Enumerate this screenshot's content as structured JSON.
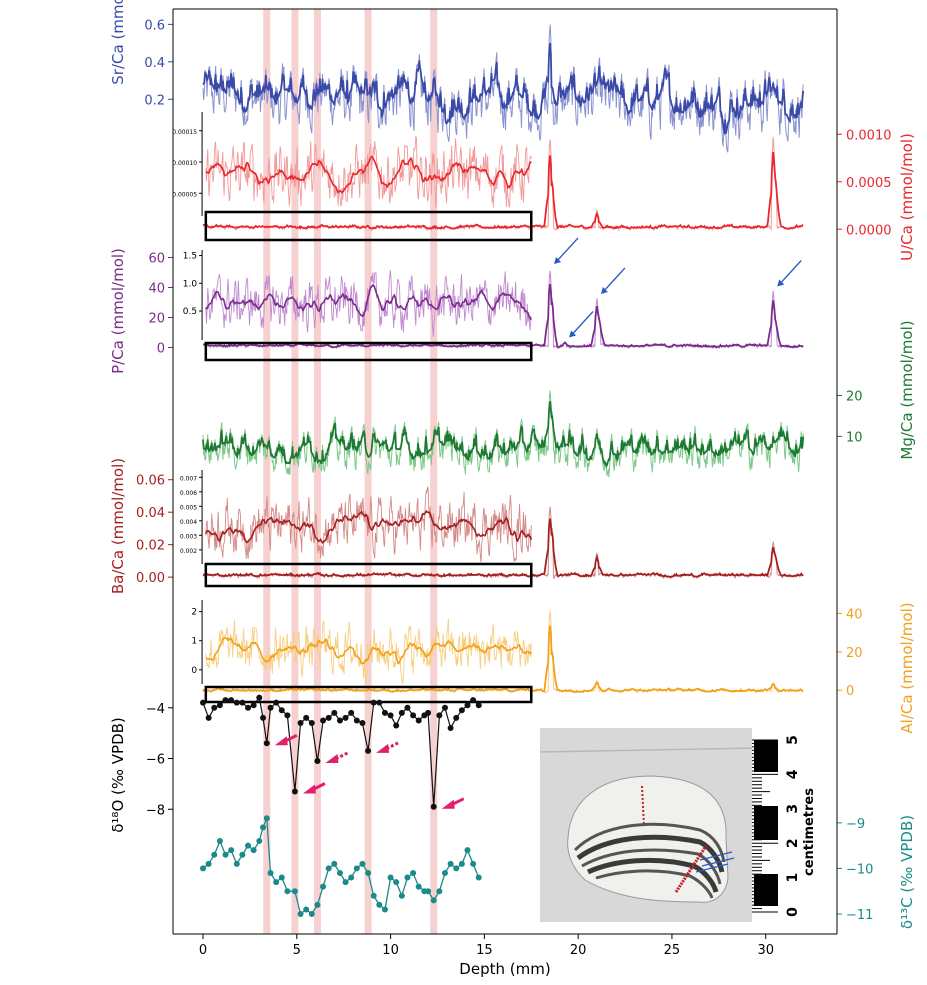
{
  "chart_data": {
    "type": "line",
    "x_axis": {
      "label": "Depth (mm)",
      "ticks": [
        0,
        5,
        10,
        15,
        20,
        25,
        30
      ],
      "range": [
        -1.6,
        33.8
      ]
    },
    "highlight_bands_mm": [
      3.4,
      4.9,
      6.1,
      8.8,
      12.3
    ],
    "colors": {
      "sr": "#3a4aa8",
      "sr_light": "#8a92d0",
      "u": "#e8282c",
      "u_light": "#f29a9a",
      "p": "#7b2c8a",
      "p_light": "#c08ad0",
      "mg": "#1e7a32",
      "mg_light": "#7cc98a",
      "ba": "#a52020",
      "ba_light": "#d48a88",
      "al": "#f2a01a",
      "al_light": "#f8cf80",
      "d18o": "#111111",
      "d13c": "#1a8a8a",
      "band": "#f2b0b0",
      "arrow_red": "#e0206a",
      "arrow_blue": "#2a5ac8"
    },
    "series": [
      {
        "key": "sr",
        "name": "Sr/Ca (mmol/mol)",
        "side": "left",
        "ticks": [
          "0.2",
          "0.4",
          "0.6"
        ],
        "tick_values": [
          0.2,
          0.4,
          0.6
        ],
        "range": [
          0.1,
          0.65
        ],
        "peaks": [
          [
            18.5,
            0.62
          ],
          [
            30.4,
            0.3
          ]
        ]
      },
      {
        "key": "u",
        "name": "U/Ca (mmol/mol)",
        "side": "right",
        "ticks": [
          "0.0000",
          "0.0005",
          "0.0010"
        ],
        "tick_values": [
          0,
          0.0005,
          0.001
        ],
        "range": [
          -5e-05,
          0.00115
        ],
        "peaks": [
          [
            18.5,
            0.00098
          ],
          [
            18.6,
            0.00055
          ],
          [
            21.0,
            0.0002
          ],
          [
            30.4,
            0.00098
          ],
          [
            30.5,
            0.0006
          ]
        ],
        "inset": {
          "ticks": [
            "0.00005",
            "0.00010",
            "0.00015"
          ],
          "tick_values": [
            5e-05,
            0.0001,
            0.00015
          ],
          "range": [
            2e-05,
            0.00018
          ]
        }
      },
      {
        "key": "p",
        "name": "P/Ca (mmol/mol)",
        "side": "left",
        "ticks": [
          "0",
          "20",
          "40",
          "60"
        ],
        "tick_values": [
          0,
          20,
          40,
          60
        ],
        "range": [
          -3,
          65
        ],
        "peaks": [
          [
            18.5,
            53
          ],
          [
            18.6,
            35
          ],
          [
            19.3,
            4
          ],
          [
            21.0,
            33
          ],
          [
            21.1,
            22
          ],
          [
            30.4,
            38
          ],
          [
            30.5,
            20
          ]
        ],
        "inset": {
          "ticks": [
            "0.5",
            "1.0",
            "1.5"
          ],
          "tick_values": [
            0.5,
            1.0,
            1.5
          ],
          "range": [
            0.05,
            1.6
          ]
        }
      },
      {
        "key": "mg",
        "name": "Mg/Ca (mmol/mol)",
        "side": "right",
        "ticks": [
          "10",
          "20"
        ],
        "tick_values": [
          10,
          20
        ],
        "range": [
          3,
          25
        ],
        "peaks": [
          [
            18.5,
            22
          ],
          [
            18.6,
            17
          ],
          [
            21.0,
            12
          ],
          [
            30.4,
            10
          ]
        ]
      },
      {
        "key": "ba",
        "name": "Ba/Ca (mmol/mol)",
        "side": "left",
        "ticks": [
          "0.00",
          "0.02",
          "0.04",
          "0.06"
        ],
        "tick_values": [
          0,
          0.02,
          0.04,
          0.06
        ],
        "range": [
          -0.003,
          0.066
        ],
        "peaks": [
          [
            18.5,
            0.045
          ],
          [
            18.6,
            0.032
          ],
          [
            21.0,
            0.015
          ],
          [
            30.4,
            0.022
          ],
          [
            30.5,
            0.015
          ]
        ],
        "inset": {
          "ticks": [
            "0.002",
            "0.003",
            "0.004",
            "0.005",
            "0.006",
            "0.007"
          ],
          "tick_values": [
            0.002,
            0.003,
            0.004,
            0.005,
            0.006,
            0.007
          ],
          "range": [
            0.0013,
            0.0075
          ]
        }
      },
      {
        "key": "al",
        "name": "Al/Ca (mmol/mol)",
        "side": "right",
        "ticks": [
          "0",
          "20",
          "40"
        ],
        "tick_values": [
          0,
          20,
          40
        ],
        "range": [
          -3,
          47
        ],
        "peaks": [
          [
            18.5,
            43
          ],
          [
            18.6,
            22
          ],
          [
            21.0,
            5
          ],
          [
            30.4,
            4
          ]
        ],
        "inset": {
          "ticks": [
            "0",
            "1",
            "2"
          ],
          "tick_values": [
            0,
            1,
            2
          ],
          "range": [
            -0.35,
            2.4
          ]
        }
      }
    ],
    "isotopes": {
      "d18o": {
        "name": "δ¹⁸O (‰ VPDB)",
        "ticks": [
          "−4",
          "−6",
          "−8"
        ],
        "tick_values": [
          -4,
          -6,
          -8
        ],
        "range": [
          -10,
          -3.3
        ],
        "x": [
          0.0,
          0.3,
          0.6,
          0.9,
          1.2,
          1.5,
          1.8,
          2.1,
          2.4,
          2.7,
          3.0,
          3.2,
          3.4,
          3.6,
          3.9,
          4.2,
          4.5,
          4.9,
          5.2,
          5.5,
          5.8,
          6.1,
          6.4,
          6.7,
          7.0,
          7.3,
          7.6,
          7.9,
          8.2,
          8.5,
          8.8,
          9.1,
          9.4,
          9.7,
          10.0,
          10.3,
          10.6,
          10.9,
          11.2,
          11.5,
          11.8,
          12.0,
          12.3,
          12.6,
          12.9,
          13.2,
          13.5,
          13.8,
          14.1,
          14.4,
          14.7
        ],
        "y": [
          -3.8,
          -4.4,
          -4.0,
          -3.9,
          -3.7,
          -3.7,
          -3.8,
          -3.8,
          -4.0,
          -3.9,
          -3.6,
          -4.4,
          -5.4,
          -4.0,
          -3.8,
          -4.1,
          -4.3,
          -7.3,
          -4.6,
          -4.4,
          -4.6,
          -6.1,
          -4.5,
          -4.4,
          -4.2,
          -4.5,
          -4.4,
          -4.2,
          -4.5,
          -4.6,
          -5.7,
          -3.8,
          -3.8,
          -4.2,
          -4.3,
          -4.7,
          -4.2,
          -4.0,
          -4.3,
          -4.5,
          -4.3,
          -4.2,
          -7.9,
          -4.3,
          -4.0,
          -4.8,
          -4.4,
          -4.1,
          -3.9,
          -3.7,
          -3.9
        ]
      },
      "d13c": {
        "name": "δ¹³C (‰ VPDB)",
        "ticks": [
          "−9",
          "−10",
          "−11"
        ],
        "tick_values": [
          -9,
          -10,
          -11
        ],
        "range": [
          -11.35,
          -8.5
        ],
        "x": [
          0.0,
          0.3,
          0.6,
          0.9,
          1.2,
          1.5,
          1.8,
          2.1,
          2.4,
          2.7,
          3.0,
          3.2,
          3.4,
          3.6,
          3.9,
          4.2,
          4.5,
          4.9,
          5.2,
          5.5,
          5.8,
          6.1,
          6.4,
          6.7,
          7.0,
          7.3,
          7.6,
          7.9,
          8.2,
          8.5,
          8.8,
          9.1,
          9.4,
          9.7,
          10.0,
          10.3,
          10.6,
          10.9,
          11.2,
          11.5,
          11.8,
          12.0,
          12.3,
          12.6,
          12.9,
          13.2,
          13.5,
          13.8,
          14.1,
          14.4,
          14.7
        ],
        "y": [
          -10.0,
          -9.9,
          -9.7,
          -9.4,
          -9.7,
          -9.6,
          -9.9,
          -9.7,
          -9.5,
          -9.6,
          -9.4,
          -9.1,
          -8.9,
          -10.1,
          -10.3,
          -10.2,
          -10.5,
          -10.5,
          -11.0,
          -10.9,
          -11.0,
          -10.8,
          -10.4,
          -10.0,
          -9.9,
          -10.1,
          -10.3,
          -10.2,
          -10.0,
          -9.9,
          -10.1,
          -10.6,
          -10.8,
          -10.9,
          -10.2,
          -10.3,
          -10.6,
          -10.2,
          -10.1,
          -10.4,
          -10.5,
          -10.5,
          -10.7,
          -10.5,
          -10.1,
          -9.9,
          -10.0,
          -9.9,
          -9.6,
          -9.9,
          -10.2
        ]
      }
    },
    "photo": {
      "ruler_label": "centimetres",
      "ruler_numbers": [
        "0",
        "1",
        "2",
        "3",
        "4",
        "5"
      ]
    }
  }
}
